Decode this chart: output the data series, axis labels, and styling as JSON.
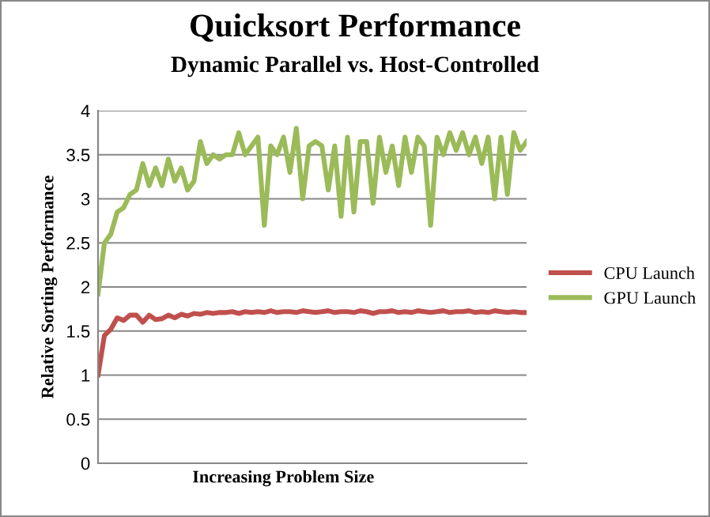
{
  "chart_data": {
    "type": "line",
    "title": "Quicksort Performance",
    "subtitle": "Dynamic Parallel vs. Host-Controlled",
    "xlabel": "Increasing Problem Size",
    "ylabel": "Relative Sorting Performance",
    "categories": [
      null,
      null,
      null,
      null,
      null,
      null,
      null,
      null,
      null,
      null,
      null,
      null,
      null,
      null,
      null,
      null,
      null,
      null,
      null,
      null,
      null,
      null,
      null,
      null,
      null,
      null,
      null,
      null,
      null,
      null,
      null,
      null,
      null,
      null,
      null,
      null,
      null,
      null,
      null,
      null,
      null,
      null,
      null,
      null,
      null,
      null,
      null,
      null,
      null,
      null,
      null,
      null,
      null,
      null,
      null,
      null,
      null,
      null,
      null,
      null,
      null,
      null,
      null,
      null,
      null,
      null,
      null,
      null
    ],
    "series": [
      {
        "name": "CPU Launch",
        "color": "#c0504d",
        "values": [
          1.0,
          1.45,
          1.52,
          1.65,
          1.62,
          1.68,
          1.68,
          1.6,
          1.68,
          1.63,
          1.64,
          1.68,
          1.65,
          1.69,
          1.67,
          1.7,
          1.69,
          1.71,
          1.7,
          1.71,
          1.71,
          1.72,
          1.7,
          1.72,
          1.71,
          1.72,
          1.71,
          1.73,
          1.71,
          1.72,
          1.72,
          1.71,
          1.73,
          1.72,
          1.71,
          1.72,
          1.73,
          1.71,
          1.72,
          1.72,
          1.71,
          1.73,
          1.72,
          1.7,
          1.72,
          1.72,
          1.73,
          1.71,
          1.72,
          1.71,
          1.73,
          1.72,
          1.71,
          1.72,
          1.73,
          1.71,
          1.72,
          1.72,
          1.73,
          1.71,
          1.72,
          1.71,
          1.73,
          1.72,
          1.71,
          1.72,
          1.71,
          1.71
        ]
      },
      {
        "name": "GPU Launch",
        "color": "#9bbb59",
        "values": [
          1.92,
          2.5,
          2.6,
          2.85,
          2.9,
          3.05,
          3.1,
          3.4,
          3.15,
          3.35,
          3.15,
          3.45,
          3.2,
          3.35,
          3.1,
          3.2,
          3.65,
          3.4,
          3.5,
          3.45,
          3.5,
          3.5,
          3.75,
          3.5,
          3.6,
          3.7,
          2.7,
          3.6,
          3.5,
          3.7,
          3.3,
          3.8,
          3.0,
          3.6,
          3.65,
          3.6,
          3.1,
          3.6,
          2.8,
          3.7,
          2.85,
          3.65,
          3.65,
          2.95,
          3.7,
          3.3,
          3.6,
          3.15,
          3.7,
          3.3,
          3.7,
          3.6,
          2.7,
          3.7,
          3.5,
          3.75,
          3.55,
          3.75,
          3.5,
          3.7,
          3.4,
          3.7,
          3.0,
          3.7,
          3.05,
          3.75,
          3.55,
          3.65
        ]
      }
    ],
    "ylim": [
      0,
      4
    ],
    "yticks": [
      0,
      0.5,
      1,
      1.5,
      2,
      2.5,
      3,
      3.5,
      4
    ],
    "grid": "y",
    "legend": "right",
    "marker": "none",
    "line_style": "solid"
  }
}
